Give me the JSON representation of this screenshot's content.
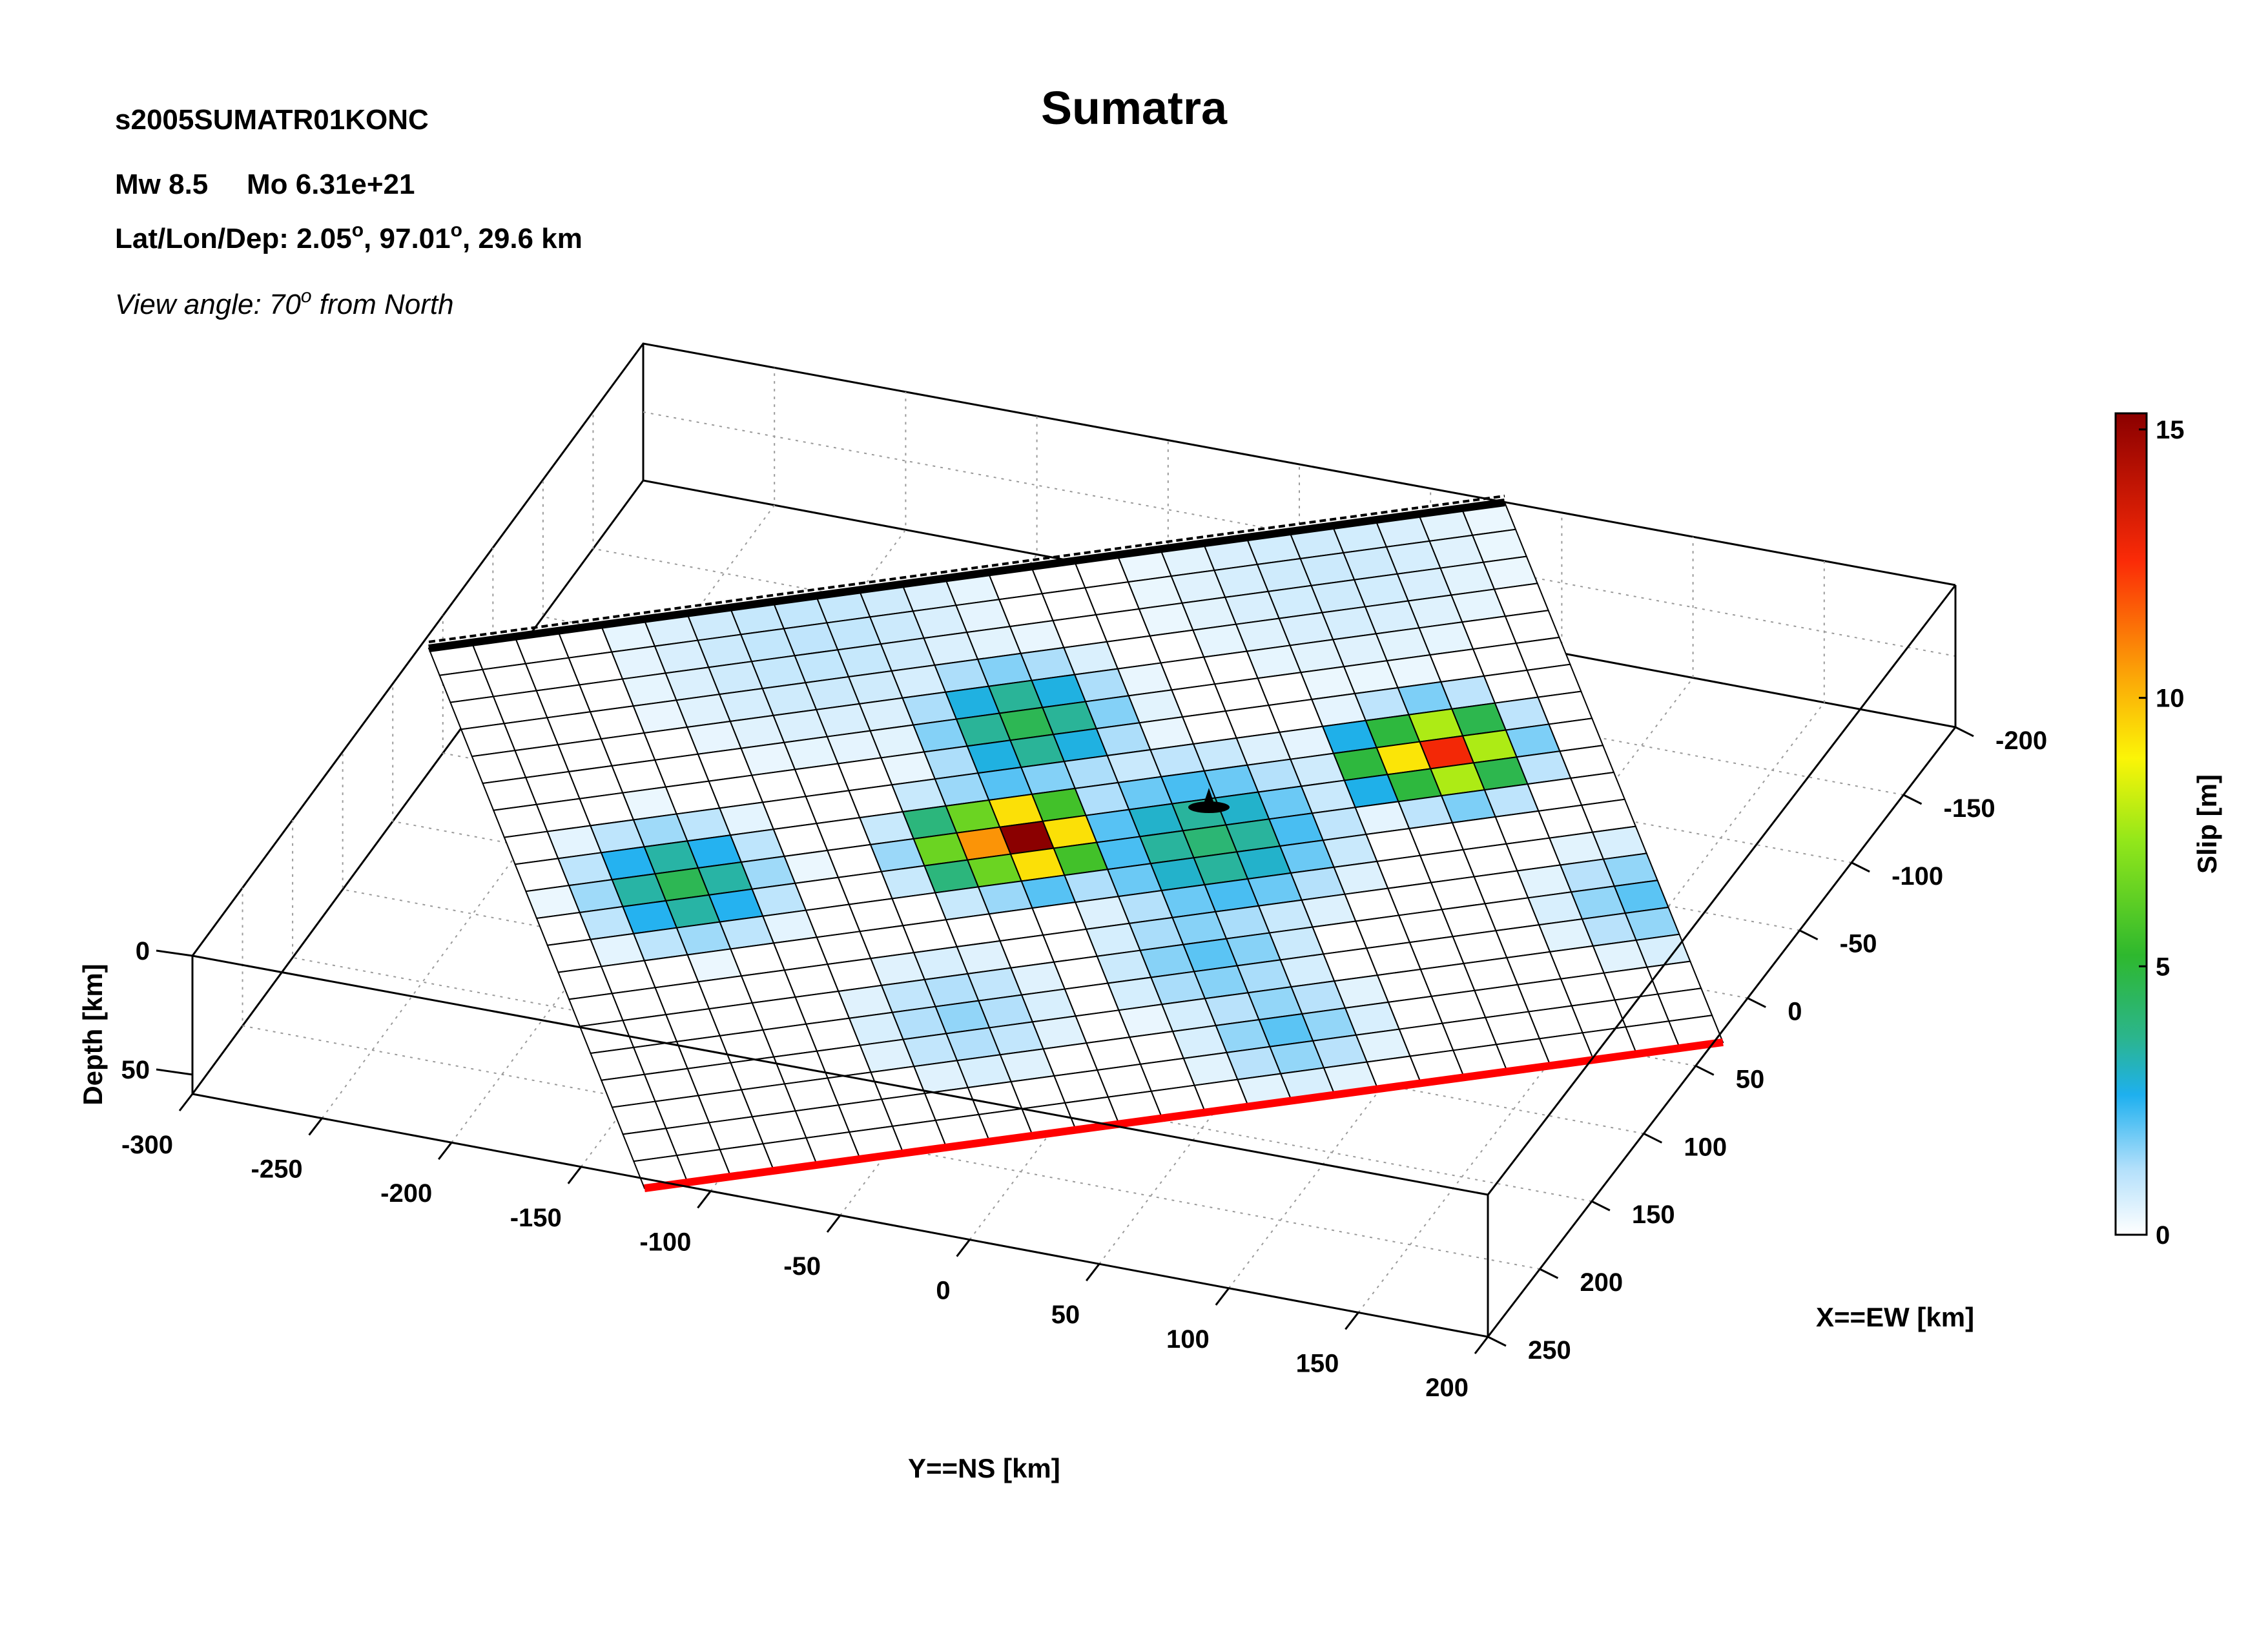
{
  "header": {
    "event_id": "s2005SUMATR01KONC",
    "title": "Sumatra",
    "mw_label": "Mw 8.5",
    "mo_label": "Mo 6.31e+21",
    "location_label": "Lat/Lon/Dep: 2.05",
    "lat": "2.05",
    "lon": "97.01",
    "depth": "29.6 km",
    "view_label": "View angle:  70",
    "view_suffix": " from North",
    "degree_mark": "o"
  },
  "chart_data": {
    "type": "heatmap",
    "title": "Sumatra",
    "xlabel": "X==EW [km]",
    "ylabel": "Y==NS [km]",
    "zlabel": "Depth [km]",
    "colorbar_label": "Slip [m]",
    "x_ticks": [
      "-200",
      "-150",
      "-100",
      "-50",
      "0",
      "50",
      "100",
      "150",
      "200",
      "250"
    ],
    "y_ticks": [
      "-300",
      "-250",
      "-200",
      "-150",
      "-100",
      "-50",
      "0",
      "50",
      "100",
      "150",
      "200"
    ],
    "z_ticks": [
      "0",
      "50"
    ],
    "colorbar_ticks": [
      "0",
      "5",
      "10",
      "15"
    ],
    "slip_range": [
      0,
      15
    ],
    "grid_rows": 20,
    "grid_cols": 25,
    "slip_peaks": [
      {
        "row": 9,
        "col": 11,
        "slip": 15.0,
        "spread": 1.0
      },
      {
        "row": 9,
        "col": 10,
        "slip": 10.5,
        "spread": 1.0
      },
      {
        "row": 8,
        "col": 21,
        "slip": 12.5,
        "spread": 1.0
      },
      {
        "row": 8,
        "col": 20,
        "slip": 9.0,
        "spread": 0.9
      },
      {
        "row": 9,
        "col": 3,
        "slip": 4.5,
        "spread": 1.3
      },
      {
        "row": 5,
        "col": 12,
        "slip": 4.5,
        "spread": 1.4
      },
      {
        "row": 10,
        "col": 15,
        "slip": 4.0,
        "spread": 1.8
      },
      {
        "row": 14,
        "col": 14,
        "slip": 2.0,
        "spread": 1.5
      },
      {
        "row": 17,
        "col": 15,
        "slip": 2.0,
        "spread": 1.3
      },
      {
        "row": 14,
        "col": 24,
        "slip": 2.0,
        "spread": 1.3
      },
      {
        "row": 15,
        "col": 8,
        "slip": 1.5,
        "spread": 1.5
      },
      {
        "row": 1,
        "col": 8,
        "slip": 1.0,
        "spread": 3.0
      },
      {
        "row": 1,
        "col": 20,
        "slip": 0.8,
        "spread": 3.0
      }
    ],
    "hypocenter": {
      "x_km": 0,
      "y_km": 0,
      "depth_km": 29.6
    },
    "fault_trace_color": "#ff0000",
    "top_edge_color": "#000000",
    "colormap": [
      "#ffffff",
      "#b3e0fb",
      "#1eb0ef",
      "#2bb58d",
      "#2eb82e",
      "#93e71a",
      "#fbf507",
      "#fba607",
      "#fb2b07",
      "#8b0000"
    ],
    "grid": true
  }
}
